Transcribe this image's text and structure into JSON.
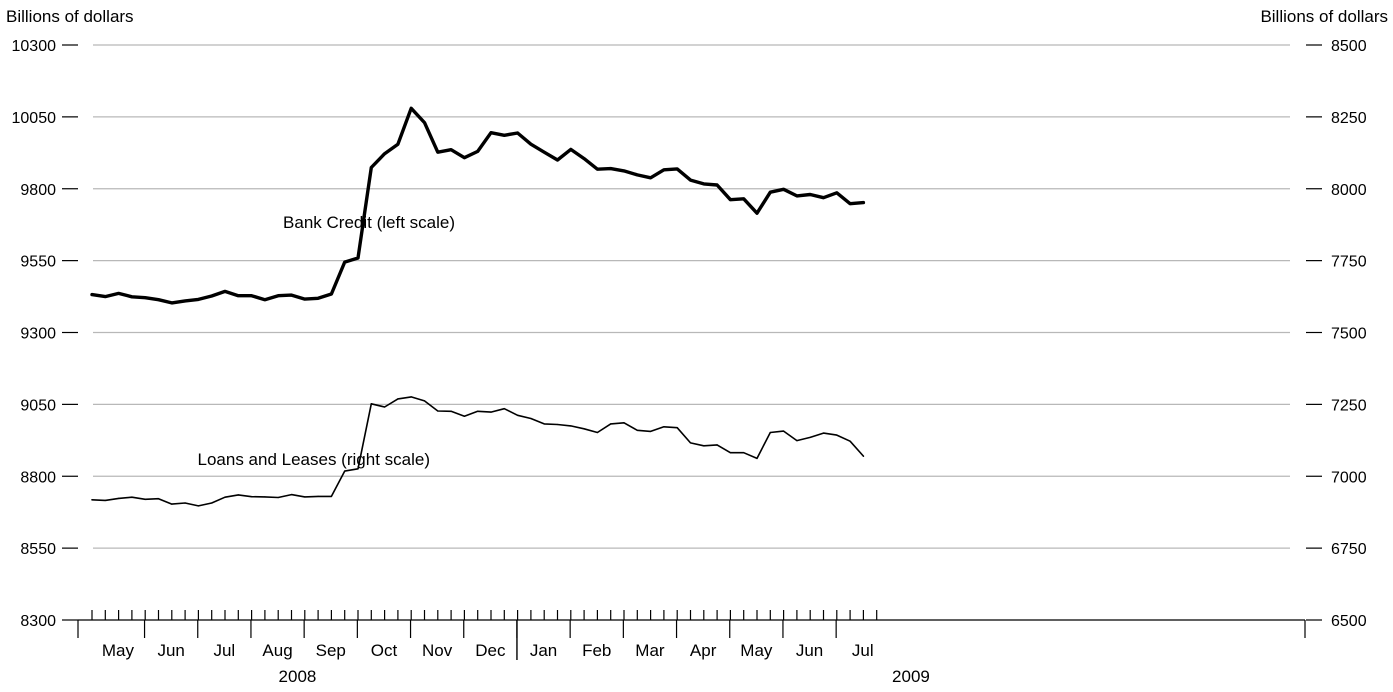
{
  "chart_data": {
    "type": "line",
    "left_axis": {
      "label": "Billions of dollars",
      "ylim": [
        8300,
        10300
      ],
      "ticks": [
        8300,
        8550,
        8800,
        9050,
        9300,
        9550,
        9800,
        10050,
        10300
      ]
    },
    "right_axis": {
      "label": "Billions of dollars",
      "ylim": [
        6500,
        8500
      ],
      "ticks": [
        6500,
        6750,
        7000,
        7250,
        7500,
        7750,
        8000,
        8250,
        8500
      ]
    },
    "grid": true,
    "x_axis": {
      "months": [
        {
          "label": "May",
          "year": 2008,
          "weeks": 4
        },
        {
          "label": "Jun",
          "year": 2008,
          "weeks": 4
        },
        {
          "label": "Jul",
          "year": 2008,
          "weeks": 4
        },
        {
          "label": "Aug",
          "year": 2008,
          "weeks": 4
        },
        {
          "label": "Sep",
          "year": 2008,
          "weeks": 4
        },
        {
          "label": "Oct",
          "year": 2008,
          "weeks": 4
        },
        {
          "label": "Nov",
          "year": 2008,
          "weeks": 4
        },
        {
          "label": "Dec",
          "year": 2008,
          "weeks": 4
        },
        {
          "label": "Jan",
          "year": 2009,
          "weeks": 4
        },
        {
          "label": "Feb",
          "year": 2009,
          "weeks": 4
        },
        {
          "label": "Mar",
          "year": 2009,
          "weeks": 4
        },
        {
          "label": "Apr",
          "year": 2009,
          "weeks": 4
        },
        {
          "label": "May",
          "year": 2009,
          "weeks": 4
        },
        {
          "label": "Jun",
          "year": 2009,
          "weeks": 4
        },
        {
          "label": "Jul",
          "year": 2009,
          "weeks": 4
        }
      ],
      "years": [
        {
          "label": "2008",
          "months": 8
        },
        {
          "label": "2009",
          "months": 7
        }
      ]
    },
    "series": [
      {
        "name": "Bank Credit (left scale)",
        "axis": "left",
        "line_width": "thick",
        "values": [
          9432,
          9425,
          9436,
          9424,
          9421,
          9414,
          9403,
          9410,
          9415,
          9427,
          9443,
          9428,
          9428,
          9414,
          9428,
          9430,
          9416,
          9419,
          9434,
          9545,
          9559,
          9874,
          9922,
          9955,
          10080,
          10030,
          9927,
          9936,
          9908,
          9930,
          9995,
          9986,
          9994,
          9955,
          9927,
          9900,
          9937,
          9905,
          9868,
          9870,
          9862,
          9848,
          9838,
          9866,
          9869,
          9830,
          9817,
          9813,
          9762,
          9765,
          9715,
          9788,
          9798,
          9775,
          9780,
          9769,
          9786,
          9748,
          9752
        ]
      },
      {
        "name": "Loans and Leases (right scale)",
        "axis": "right",
        "line_width": "thin",
        "values": [
          6918,
          6916,
          6923,
          6927,
          6920,
          6922,
          6903,
          6907,
          6897,
          6907,
          6927,
          6935,
          6929,
          6928,
          6926,
          6936,
          6928,
          6930,
          6930,
          7018,
          7026,
          7252,
          7241,
          7269,
          7276,
          7262,
          7227,
          7226,
          7209,
          7226,
          7223,
          7235,
          7212,
          7201,
          7182,
          7180,
          7175,
          7165,
          7152,
          7182,
          7186,
          7160,
          7156,
          7172,
          7169,
          7116,
          7106,
          7109,
          7082,
          7082,
          7062,
          7152,
          7157,
          7124,
          7135,
          7150,
          7143,
          7122,
          7070
        ]
      }
    ],
    "annotations": [
      {
        "text": "Bank Credit (left scale)",
        "series": 0
      },
      {
        "text": "Loans and Leases (right scale)",
        "series": 1
      }
    ]
  }
}
